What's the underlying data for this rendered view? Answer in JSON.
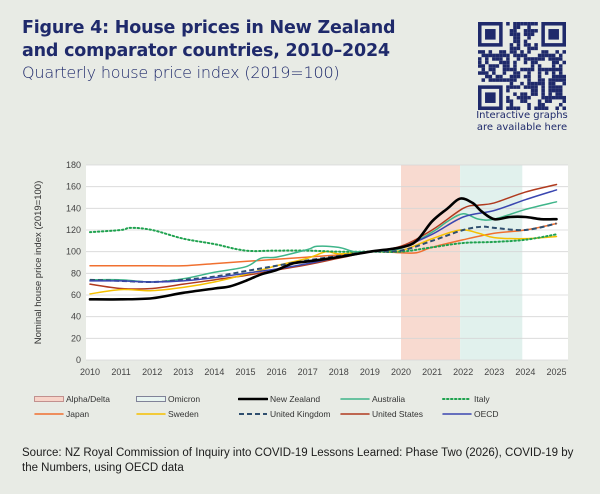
{
  "header": {
    "title": "Figure 4: House prices in New Zealand and comparator countries, 2010–2024",
    "subtitle": "Quarterly house price index (2019=100)"
  },
  "qr": {
    "caption_line1": "Interactive graphs",
    "caption_line2": "are available here"
  },
  "source": "Source: NZ Royal Commission of Inquiry into COVID-19 Lessons Learned: Phase Two (2026), COVID-19 by the Numbers, using OECD data",
  "chart_data": {
    "type": "line",
    "title": "",
    "xlabel": "",
    "ylabel": "Nominal house price index (2019=100)",
    "xlim": [
      2010,
      2025
    ],
    "ylim": [
      0,
      180
    ],
    "xticks": [
      "2010",
      "2011",
      "2012",
      "2013",
      "2014",
      "2015",
      "2016",
      "2017",
      "2018",
      "2019",
      "2020",
      "2021",
      "2022",
      "2023",
      "2024",
      "2025"
    ],
    "yticks": [
      "0",
      "20",
      "40",
      "60",
      "80",
      "100",
      "120",
      "140",
      "160",
      "180"
    ],
    "grid": "horizontal",
    "legend_position": "bottom",
    "shaded_periods": [
      {
        "name": "Alpha/Delta",
        "start": 2020.0,
        "end": 2021.9,
        "color": "#f7d3c8"
      },
      {
        "name": "Omicron",
        "start": 2021.9,
        "end": 2023.9,
        "color": "#dcefea"
      }
    ],
    "series": [
      {
        "name": "New Zealand",
        "color": "#000000",
        "style": "solid-thick",
        "x": [
          2010,
          2011,
          2012,
          2013,
          2014,
          2014.5,
          2015,
          2015.5,
          2016,
          2016.5,
          2017,
          2018,
          2019,
          2020,
          2020.5,
          2021,
          2021.5,
          2021.9,
          2022.3,
          2022.6,
          2023,
          2023.5,
          2024,
          2024.5,
          2025
        ],
        "y": [
          56,
          56,
          57,
          62,
          66,
          68,
          73,
          79,
          83,
          89,
          91,
          95,
          100,
          104,
          110,
          128,
          140,
          149,
          145,
          137,
          130,
          132,
          132,
          130,
          130
        ]
      },
      {
        "name": "Australia",
        "color": "#3fb58a",
        "style": "solid",
        "x": [
          2010,
          2011,
          2012,
          2013,
          2014,
          2015,
          2015.5,
          2016,
          2017,
          2017.3,
          2018,
          2018.5,
          2019,
          2020,
          2021,
          2021.5,
          2022,
          2022.5,
          2023,
          2024,
          2025
        ],
        "y": [
          74,
          74,
          72,
          75,
          81,
          86,
          94,
          95,
          102,
          105,
          104,
          100,
          100,
          103,
          118,
          128,
          135,
          130,
          130,
          139,
          146
        ]
      },
      {
        "name": "Italy",
        "color": "#1fa24f",
        "style": "dotted",
        "x": [
          2010,
          2011,
          2011.3,
          2012,
          2013,
          2014,
          2015,
          2016,
          2017,
          2018,
          2019,
          2020,
          2021,
          2022,
          2023,
          2024,
          2025
        ],
        "y": [
          118,
          120,
          122,
          120,
          112,
          107,
          101,
          101,
          101,
          100,
          100,
          100,
          104,
          108,
          109,
          111,
          116
        ]
      },
      {
        "name": "Japan",
        "color": "#f07030",
        "style": "solid",
        "x": [
          2010,
          2012,
          2013,
          2014,
          2015,
          2016,
          2017,
          2018,
          2019,
          2020,
          2020.5,
          2021,
          2022,
          2023,
          2024,
          2025
        ],
        "y": [
          87,
          87,
          87,
          89,
          91,
          93,
          95,
          97,
          100,
          99,
          99,
          104,
          111,
          117,
          120,
          126
        ]
      },
      {
        "name": "Sweden",
        "color": "#f5c000",
        "style": "solid",
        "x": [
          2010,
          2011,
          2012,
          2013,
          2014,
          2015,
          2016,
          2017,
          2017.6,
          2018,
          2019,
          2020,
          2021,
          2021.9,
          2022.5,
          2023,
          2024,
          2025
        ],
        "y": [
          61,
          65,
          64,
          67,
          72,
          79,
          87,
          94,
          100,
          98,
          100,
          101,
          112,
          120,
          117,
          113,
          112,
          114
        ]
      },
      {
        "name": "United Kingdom",
        "color": "#2f4f6f",
        "style": "dashed",
        "x": [
          2010,
          2011,
          2012,
          2013,
          2014,
          2015,
          2016,
          2017,
          2018,
          2019,
          2020,
          2021,
          2022,
          2022.6,
          2023,
          2024,
          2025
        ],
        "y": [
          74,
          73,
          72,
          74,
          77,
          82,
          87,
          92,
          96,
          100,
          101,
          110,
          120,
          123,
          122,
          120,
          126
        ]
      },
      {
        "name": "United States",
        "color": "#b03a1e",
        "style": "solid",
        "x": [
          2010,
          2011,
          2012,
          2013,
          2014,
          2015,
          2016,
          2017,
          2018,
          2019,
          2020,
          2021,
          2022,
          2022.5,
          2023,
          2024,
          2025
        ],
        "y": [
          70,
          66,
          66,
          70,
          74,
          78,
          83,
          88,
          94,
          100,
          105,
          120,
          140,
          143,
          145,
          155,
          162
        ]
      },
      {
        "name": "OECD",
        "color": "#3a46b0",
        "style": "solid",
        "x": [
          2010,
          2011,
          2012,
          2013,
          2014,
          2015,
          2016,
          2017,
          2018,
          2019,
          2020,
          2021,
          2022,
          2023,
          2024,
          2025
        ],
        "y": [
          73,
          73,
          72,
          73,
          76,
          80,
          84,
          89,
          95,
          100,
          104,
          116,
          132,
          138,
          148,
          157
        ]
      }
    ]
  },
  "legend": {
    "items": [
      "Alpha/Delta",
      "Omicron",
      "New Zealand",
      "Australia",
      "Italy",
      "Japan",
      "Sweden",
      "United Kingdom",
      "United States",
      "OECD"
    ]
  }
}
